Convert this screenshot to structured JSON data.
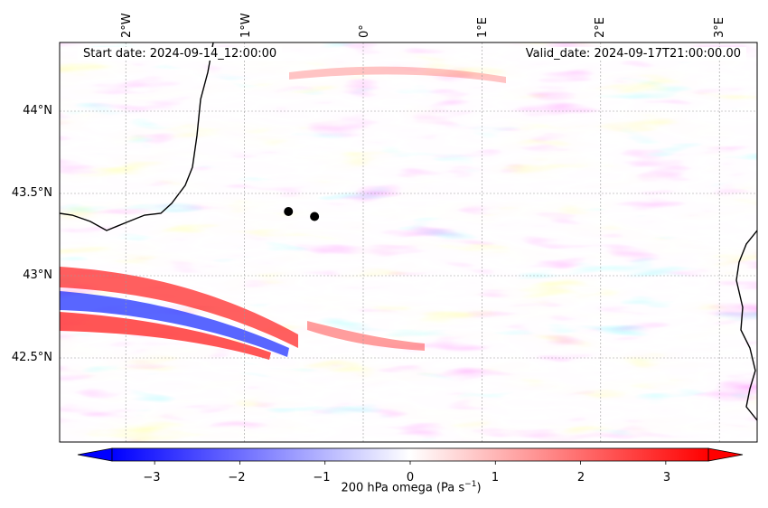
{
  "map": {
    "start_date": "Start date: 2024-09-14_12:00:00",
    "valid_date": "Valid_date: 2024-09-17T21:00:00.00",
    "lon_ticks": [
      "2°W",
      "1°W",
      "0°",
      "1°E",
      "2°E",
      "3°E"
    ],
    "lat_ticks": [
      "44°N",
      "43.5°N",
      "43°N",
      "42.5°N"
    ],
    "markers": [
      {
        "name": "marker-1",
        "lon": -0.63,
        "lat": 43.39
      },
      {
        "name": "marker-2",
        "lon": -0.41,
        "lat": 43.36
      }
    ],
    "field_name": "200 hPa omega",
    "colormap": [
      "#0000ff",
      "#ffffff",
      "#ff0000"
    ]
  },
  "colorbar": {
    "ticks": [
      "−3",
      "−2",
      "−1",
      "0",
      "1",
      "2",
      "3"
    ],
    "label_main": "200 hPa omega (Pa s",
    "label_exp": "−1",
    "label_close": ")",
    "min": -3.5,
    "max": 3.5
  }
}
